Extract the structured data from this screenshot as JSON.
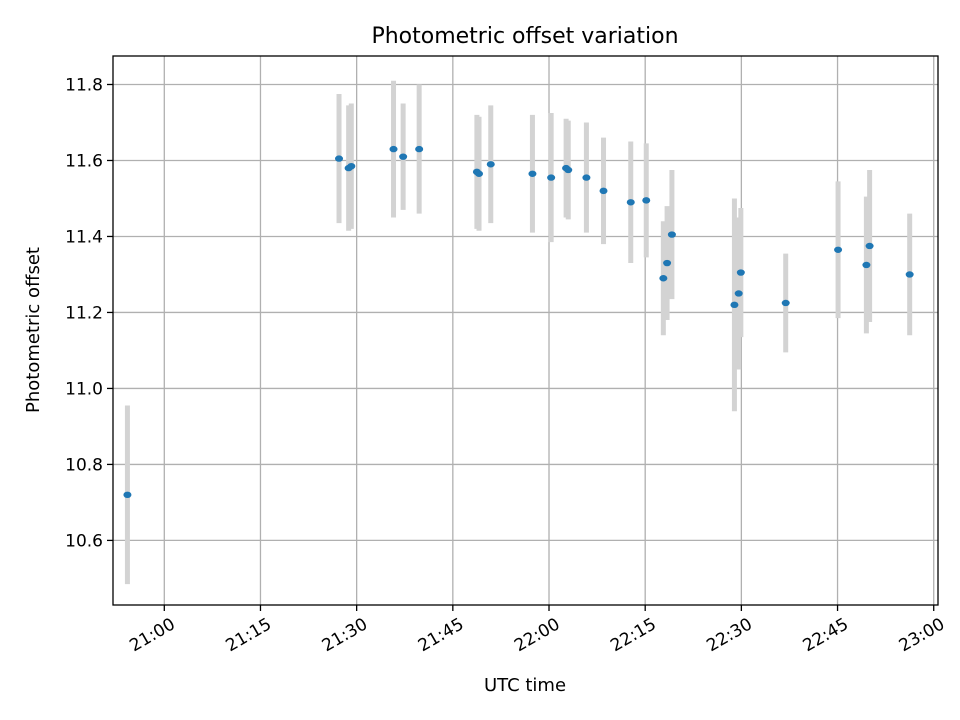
{
  "chart_data": {
    "type": "scatter",
    "title": "Photometric offset variation",
    "xlabel": "UTC time",
    "ylabel": "Photometric offset",
    "xlim": [
      "20:52",
      "23:00:40"
    ],
    "ylim": [
      10.43,
      11.875
    ],
    "grid": true,
    "x_ticks": [
      "21:00",
      "21:15",
      "21:30",
      "21:45",
      "22:00",
      "22:15",
      "22:30",
      "22:45",
      "23:00"
    ],
    "y_ticks": [
      "10.6",
      "10.8",
      "11.0",
      "11.2",
      "11.4",
      "11.6",
      "11.8"
    ],
    "marker_color": "#1f77b4",
    "errorbar_color": "#d3d3d3",
    "series": [
      {
        "points": [
          {
            "x": "20:54:15",
            "y": 10.72,
            "err": 0.235
          },
          {
            "x": "21:27:15",
            "y": 11.605,
            "err": 0.17
          },
          {
            "x": "21:28:45",
            "y": 11.58,
            "err": 0.165
          },
          {
            "x": "21:29:10",
            "y": 11.585,
            "err": 0.165
          },
          {
            "x": "21:35:45",
            "y": 11.63,
            "err": 0.18
          },
          {
            "x": "21:37:15",
            "y": 11.61,
            "err": 0.14
          },
          {
            "x": "21:39:45",
            "y": 11.63,
            "err": 0.17
          },
          {
            "x": "21:48:45",
            "y": 11.57,
            "err": 0.15
          },
          {
            "x": "21:49:05",
            "y": 11.565,
            "err": 0.15
          },
          {
            "x": "21:50:55",
            "y": 11.59,
            "err": 0.155
          },
          {
            "x": "21:57:25",
            "y": 11.565,
            "err": 0.155
          },
          {
            "x": "22:00:20",
            "y": 11.555,
            "err": 0.17
          },
          {
            "x": "22:02:40",
            "y": 11.58,
            "err": 0.13
          },
          {
            "x": "22:03:00",
            "y": 11.575,
            "err": 0.13
          },
          {
            "x": "22:05:50",
            "y": 11.555,
            "err": 0.145
          },
          {
            "x": "22:08:30",
            "y": 11.52,
            "err": 0.14
          },
          {
            "x": "22:12:45",
            "y": 11.49,
            "err": 0.16
          },
          {
            "x": "22:15:10",
            "y": 11.495,
            "err": 0.15
          },
          {
            "x": "22:17:50",
            "y": 11.29,
            "err": 0.15
          },
          {
            "x": "22:18:25",
            "y": 11.33,
            "err": 0.15
          },
          {
            "x": "22:19:10",
            "y": 11.405,
            "err": 0.17
          },
          {
            "x": "22:28:55",
            "y": 11.22,
            "err": 0.28
          },
          {
            "x": "22:29:35",
            "y": 11.25,
            "err": 0.2
          },
          {
            "x": "22:29:55",
            "y": 11.305,
            "err": 0.17
          },
          {
            "x": "22:36:55",
            "y": 11.225,
            "err": 0.13
          },
          {
            "x": "22:45:05",
            "y": 11.365,
            "err": 0.18
          },
          {
            "x": "22:49:30",
            "y": 11.325,
            "err": 0.18
          },
          {
            "x": "22:50:00",
            "y": 11.375,
            "err": 0.2
          },
          {
            "x": "22:56:15",
            "y": 11.3,
            "err": 0.16
          }
        ]
      }
    ]
  }
}
